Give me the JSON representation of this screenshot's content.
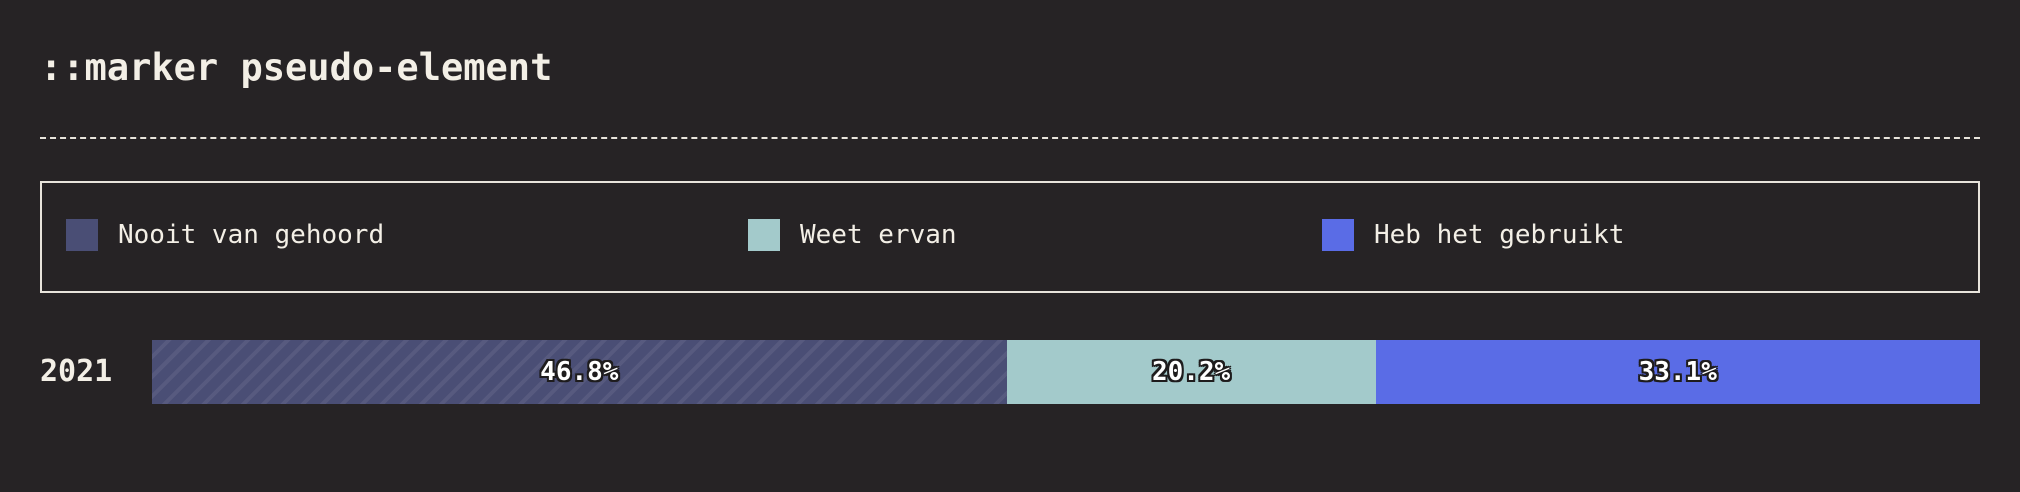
{
  "header": {
    "title": "::marker pseudo-element"
  },
  "legend": {
    "items": [
      {
        "label": "Nooit van gehoord",
        "color": "#4a4e75"
      },
      {
        "label": "Weet ervan",
        "color": "#a3cacb"
      },
      {
        "label": "Heb het gebruikt",
        "color": "#5a6ce6"
      }
    ]
  },
  "chart_data": {
    "type": "bar",
    "orientation": "horizontal",
    "stacked": true,
    "categories": [
      "2021"
    ],
    "series": [
      {
        "name": "Nooit van gehoord",
        "values": [
          46.8
        ],
        "label": "46.8%",
        "color": "#4a4e75"
      },
      {
        "name": "Weet ervan",
        "values": [
          20.2
        ],
        "label": "20.2%",
        "color": "#a3cacb"
      },
      {
        "name": "Heb het gebruikt",
        "values": [
          33.1
        ],
        "label": "33.1%",
        "color": "#5a6ce6"
      }
    ],
    "title": "::marker pseudo-element",
    "unit": "%",
    "legend_position": "top"
  }
}
